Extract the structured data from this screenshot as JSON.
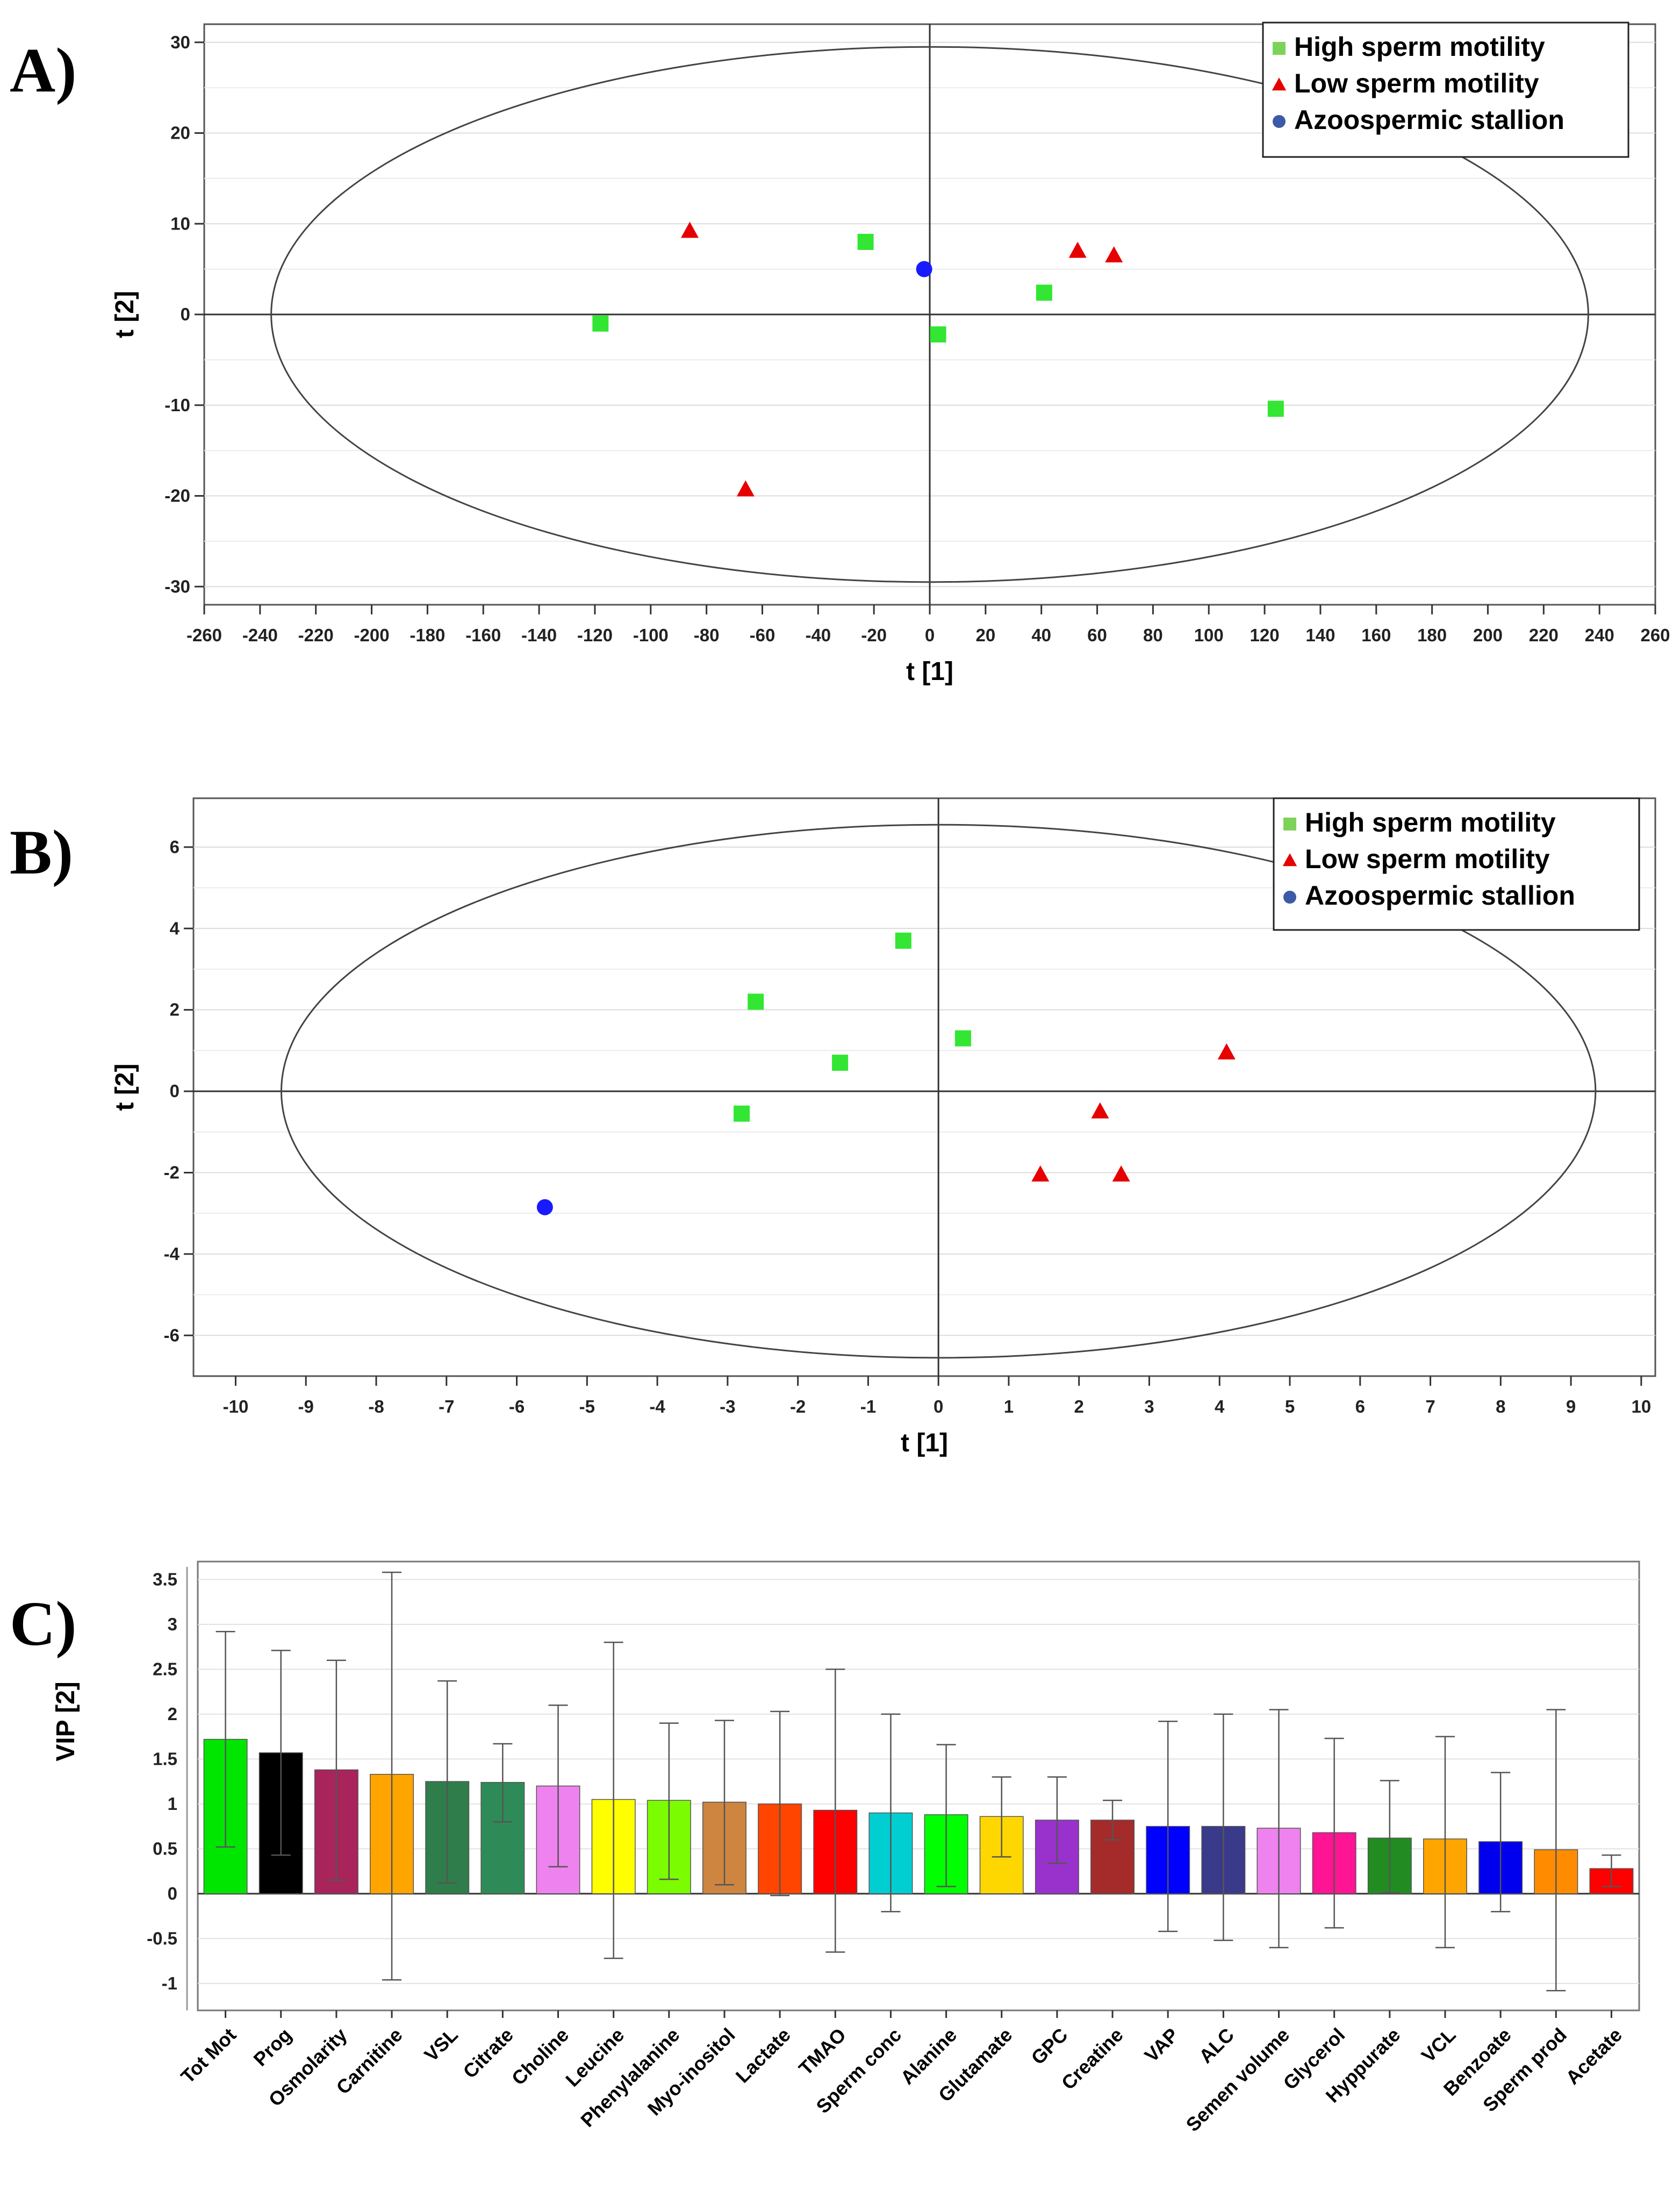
{
  "chart_data": [
    {
      "type": "scatter",
      "panel_label": "A)",
      "xlabel": "t [1]",
      "ylabel": "t [2]",
      "xlim": [
        -260,
        260
      ],
      "ylim": [
        -32,
        32
      ],
      "xticks": [
        -260,
        -240,
        -220,
        -200,
        -180,
        -160,
        -140,
        -120,
        -100,
        -80,
        -60,
        -40,
        -20,
        0,
        20,
        40,
        60,
        80,
        100,
        120,
        140,
        160,
        180,
        200,
        220,
        240,
        260
      ],
      "yticks": [
        -30,
        -20,
        -10,
        0,
        10,
        20,
        30
      ],
      "ellipse": {
        "rx": 236,
        "ry": 29.5
      },
      "legend_position": "top-right",
      "series": [
        {
          "name": "High sperm motility",
          "marker": "square",
          "color": "#33e633",
          "points": [
            [
              -118,
              -1
            ],
            [
              -23,
              8
            ],
            [
              3,
              -2.2
            ],
            [
              41,
              2.4
            ],
            [
              124,
              -10.4
            ]
          ]
        },
        {
          "name": "Low sperm motility",
          "marker": "triangle",
          "color": "#e60000",
          "points": [
            [
              -86,
              9.2
            ],
            [
              -66,
              -19.3
            ],
            [
              53,
              7
            ],
            [
              66,
              6.5
            ]
          ]
        },
        {
          "name": "Azoospermic stallion",
          "marker": "circle",
          "color": "#1a1aff",
          "points": [
            [
              -2,
              5
            ]
          ]
        }
      ]
    },
    {
      "type": "scatter",
      "panel_label": "B)",
      "xlabel": "t [1]",
      "ylabel": "t [2]",
      "xlim": [
        -10.6,
        10.2
      ],
      "ylim": [
        -7,
        7.2
      ],
      "xticks": [
        -10,
        -9,
        -8,
        -7,
        -6,
        -5,
        -4,
        -3,
        -2,
        -1,
        0,
        1,
        2,
        3,
        4,
        5,
        6,
        7,
        8,
        9,
        10
      ],
      "yticks": [
        -6,
        -4,
        -2,
        0,
        2,
        4,
        6
      ],
      "ellipse": {
        "rx": 9.35,
        "ry": 6.55
      },
      "legend_position": "top-right",
      "series": [
        {
          "name": "High sperm motility",
          "marker": "square",
          "color": "#33e633",
          "points": [
            [
              -2.6,
              2.2
            ],
            [
              -0.5,
              3.7
            ],
            [
              -1.4,
              0.7
            ],
            [
              0.35,
              1.3
            ],
            [
              -2.8,
              -0.55
            ]
          ]
        },
        {
          "name": "Low sperm motility",
          "marker": "triangle",
          "color": "#e60000",
          "points": [
            [
              4.1,
              0.95
            ],
            [
              2.3,
              -0.5
            ],
            [
              1.45,
              -2.05
            ],
            [
              2.6,
              -2.05
            ]
          ]
        },
        {
          "name": "Azoospermic stallion",
          "marker": "circle",
          "color": "#1a1aff",
          "points": [
            [
              -5.6,
              -2.85
            ]
          ]
        }
      ]
    },
    {
      "type": "bar",
      "panel_label": "C)",
      "xlabel": "",
      "ylabel": "VIP [2]",
      "ylim": [
        -1.3,
        3.7
      ],
      "yticks": [
        -1,
        -0.5,
        0,
        0.5,
        1,
        1.5,
        2,
        2.5,
        3,
        3.5
      ],
      "ytick_labels": [
        "-1",
        "-0.5",
        "0",
        "0.5",
        "1",
        "1.5",
        "2",
        "2.5",
        "3",
        "3.5"
      ],
      "categories": [
        "Tot Mot",
        "Prog",
        "Osmolarity",
        "Carnitine",
        "VSL",
        "Citrate",
        "Choline",
        "Leucine",
        "Phenylalanine",
        "Myo-inositol",
        "Lactate",
        "TMAO",
        "Sperm conc",
        "Alanine",
        "Glutamate",
        "GPC",
        "Creatine",
        "VAP",
        "ALC",
        "Semen volume",
        "Glycerol",
        "Hyppurate",
        "VCL",
        "Benzoate",
        "Sperm prod",
        "Acetate"
      ],
      "values": [
        1.72,
        1.57,
        1.38,
        1.33,
        1.25,
        1.24,
        1.2,
        1.05,
        1.04,
        1.02,
        1.0,
        0.93,
        0.9,
        0.88,
        0.86,
        0.82,
        0.82,
        0.75,
        0.75,
        0.73,
        0.68,
        0.62,
        0.61,
        0.58,
        0.49,
        0.28
      ],
      "error_low": [
        0.52,
        0.43,
        0.15,
        -0.96,
        0.12,
        0.8,
        0.3,
        -0.72,
        0.16,
        0.1,
        -0.02,
        -0.65,
        -0.2,
        0.08,
        0.41,
        0.34,
        0.6,
        -0.42,
        -0.52,
        -0.6,
        -0.38,
        0.01,
        -0.6,
        -0.2,
        -1.08,
        0.08
      ],
      "error_high": [
        2.92,
        2.71,
        2.6,
        3.58,
        2.37,
        1.67,
        2.1,
        2.8,
        1.9,
        1.93,
        2.03,
        2.5,
        2.0,
        1.66,
        1.3,
        1.3,
        1.04,
        1.92,
        2.0,
        2.05,
        1.73,
        1.26,
        1.75,
        1.35,
        2.05,
        0.43
      ],
      "colors": [
        "#00e600",
        "#000000",
        "#a8245a",
        "#ffa500",
        "#2e7d4a",
        "#2e8b57",
        "#ee82ee",
        "#ffff00",
        "#7cfc00",
        "#cd853f",
        "#ff4500",
        "#ff0000",
        "#00ced1",
        "#00ff00",
        "#ffd700",
        "#9932cc",
        "#a52a2a",
        "#0000ff",
        "#3a3a8a",
        "#ee82ee",
        "#ff1493",
        "#228b22",
        "#ffa500",
        "#0000ee",
        "#ff8c00",
        "#ff0000"
      ]
    }
  ]
}
